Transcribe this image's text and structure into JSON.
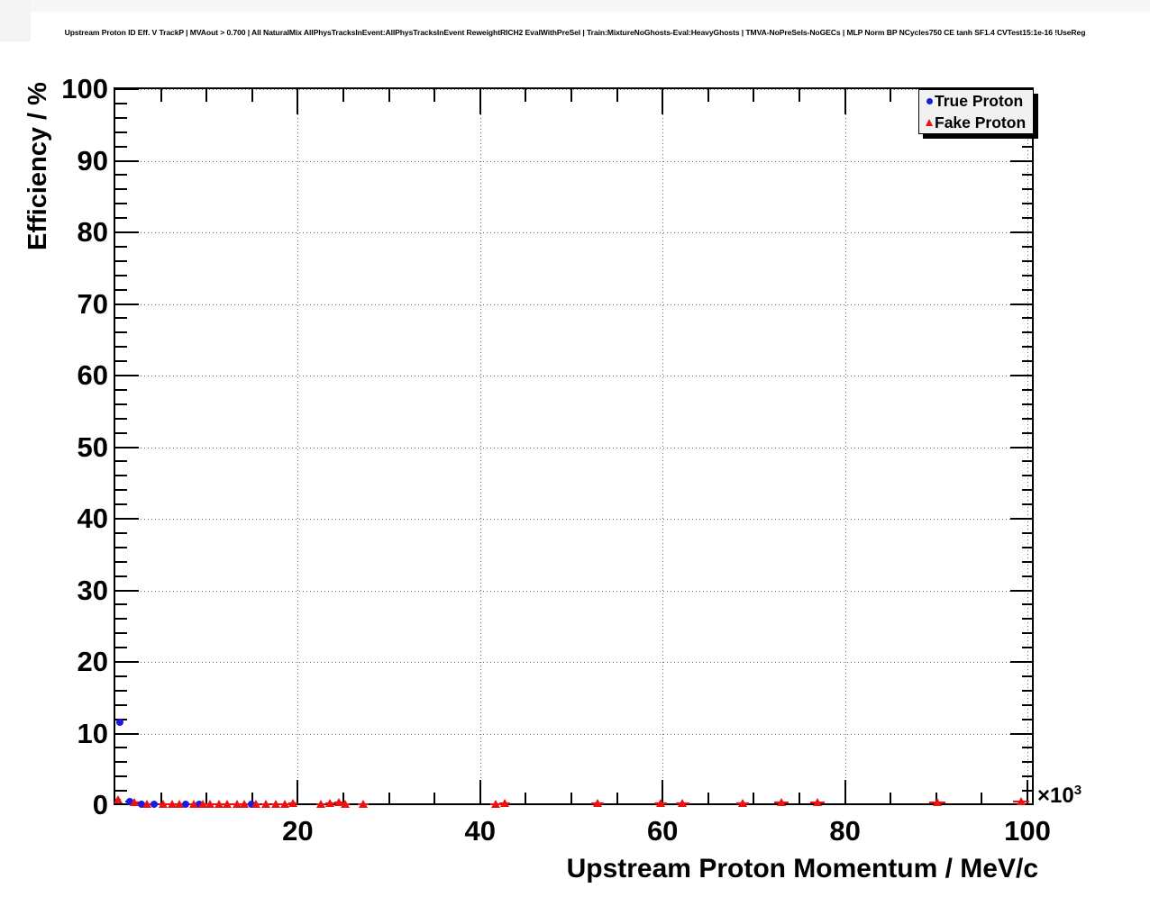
{
  "title": "Upstream Proton ID Eff. V TrackP | MVAout > 0.700 | All NaturalMix AllPhysTracksInEvent:AllPhysTracksInEvent ReweightRICH2 EvalWithPreSel | Train:MixtureNoGhosts-Eval:HeavyGhosts | TMVA-NoPreSels-NoGECs | MLP Norm BP NCycles750 CE tanh SF1.4 CVTest15:1e-16 !UseReg",
  "axes": {
    "x_title": "Upstream Proton Momentum / MeV/c",
    "y_title": "Efficiency / %",
    "x_exponent_prefix": "×10",
    "x_exponent": "3"
  },
  "legend": {
    "position": "top-right",
    "entries": [
      {
        "label": "True Proton",
        "marker": "circle",
        "color": "#1a1ae6"
      },
      {
        "label": "Fake Proton",
        "marker": "triangle",
        "color": "#ee1111"
      }
    ]
  },
  "colors": {
    "true_proton": "#1a1ae6",
    "fake_proton": "#ee1111",
    "grid": "#6b6b6b",
    "frame": "#000000",
    "legend_fill": "#f1f1f1"
  },
  "chart_data": {
    "type": "scatter",
    "title": "Upstream Proton ID Eff. V TrackP | MVAout > 0.700 | All NaturalMix AllPhysTracksInEvent:AllPhysTracksInEvent ReweightRICH2 EvalWithPreSel | Train:MixtureNoGhosts-Eval:HeavyGhosts | TMVA-NoPreSels-NoGECs | MLP Norm BP NCycles750 CE tanh SF1.4 CVTest15:1e-16 !UseReg",
    "xlabel": "Upstream Proton Momentum / MeV/c",
    "ylabel": "Efficiency / %",
    "x_unit_scale": "x10^3",
    "xlim": [
      0,
      100.7
    ],
    "ylim": [
      0,
      100
    ],
    "x_major_ticks": [
      20,
      40,
      60,
      80,
      100
    ],
    "x_minor_step": 5,
    "y_major_ticks": [
      0,
      10,
      20,
      30,
      40,
      50,
      60,
      70,
      80,
      90,
      100
    ],
    "y_minor_step": 2,
    "grid": "dotted lines at every major tick, both axes",
    "legend_position": "top-right",
    "points_format": [
      "x (10^3 MeV/c)",
      "y (%)",
      "xerr",
      "yerr"
    ],
    "series": [
      {
        "name": "True Proton",
        "marker": "circle",
        "color": "#1a1ae6",
        "points": [
          [
            0.45,
            11.6,
            0.35,
            0
          ],
          [
            1.6,
            0.55,
            0.5,
            0
          ],
          [
            2.9,
            0.18,
            0.5,
            0
          ],
          [
            4.2,
            0.12,
            0.5,
            0
          ],
          [
            7.7,
            0.15,
            0.5,
            0
          ],
          [
            9.2,
            0.18,
            0.5,
            0
          ],
          [
            14.9,
            0.12,
            0.5,
            0
          ]
        ]
      },
      {
        "name": "Fake Proton",
        "marker": "triangle",
        "color": "#ee1111",
        "points": [
          [
            0.3,
            0.75,
            0.3,
            0
          ],
          [
            2.1,
            0.35,
            0.5,
            0
          ],
          [
            3.5,
            0.1,
            0.5,
            0
          ],
          [
            5.2,
            0.1,
            0.5,
            0
          ],
          [
            6.2,
            0.1,
            0.5,
            0
          ],
          [
            7.0,
            0.1,
            0.5,
            0
          ],
          [
            8.6,
            0.12,
            0.5,
            0
          ],
          [
            9.6,
            0.1,
            0.5,
            0
          ],
          [
            10.4,
            0.1,
            0.5,
            0
          ],
          [
            11.4,
            0.1,
            0.5,
            0
          ],
          [
            12.3,
            0.1,
            0.5,
            0
          ],
          [
            13.3,
            0.12,
            0.5,
            0
          ],
          [
            14.1,
            0.1,
            0.5,
            0
          ],
          [
            15.4,
            0.18,
            0.5,
            0
          ],
          [
            16.5,
            0.12,
            0.5,
            0
          ],
          [
            17.6,
            0.1,
            0.5,
            0
          ],
          [
            18.6,
            0.12,
            0.5,
            0
          ],
          [
            19.5,
            0.22,
            0.5,
            0
          ],
          [
            22.5,
            0.15,
            0.5,
            0
          ],
          [
            23.5,
            0.2,
            0.5,
            0
          ],
          [
            24.5,
            0.4,
            0.5,
            0.35
          ],
          [
            25.2,
            0.15,
            0.5,
            0
          ],
          [
            27.2,
            0.1,
            0.6,
            0
          ],
          [
            41.7,
            0.15,
            0.6,
            0
          ],
          [
            42.7,
            0.2,
            0.6,
            0
          ],
          [
            52.9,
            0.25,
            0.7,
            0
          ],
          [
            59.8,
            0.3,
            0.7,
            0
          ],
          [
            62.2,
            0.3,
            0.7,
            0
          ],
          [
            68.8,
            0.3,
            0.7,
            0
          ],
          [
            73.0,
            0.4,
            0.8,
            0
          ],
          [
            77.0,
            0.35,
            0.8,
            0
          ],
          [
            90.1,
            0.4,
            0.9,
            0
          ],
          [
            99.3,
            0.45,
            0.9,
            0
          ]
        ]
      }
    ]
  }
}
